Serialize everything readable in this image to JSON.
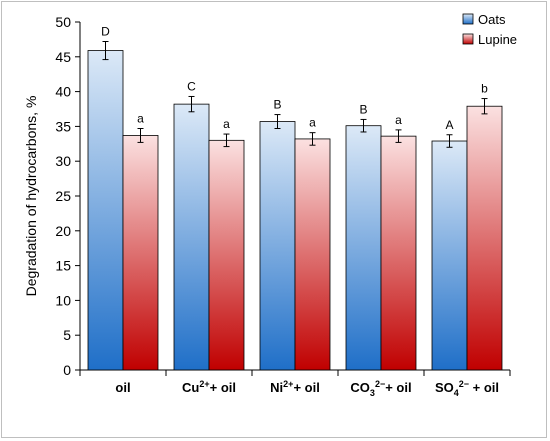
{
  "chart_data": {
    "type": "bar",
    "categories": [
      {
        "parts": [
          {
            "t": "oil",
            "s": ""
          }
        ]
      },
      {
        "parts": [
          {
            "t": "Cu",
            "s": ""
          },
          {
            "t": "2+",
            "s": "sup"
          },
          {
            "t": "+ oil",
            "s": ""
          }
        ]
      },
      {
        "parts": [
          {
            "t": "Ni",
            "s": ""
          },
          {
            "t": "2+",
            "s": "sup"
          },
          {
            "t": "+ oil",
            "s": ""
          }
        ]
      },
      {
        "parts": [
          {
            "t": "CO",
            "s": ""
          },
          {
            "t": "3",
            "s": "sub"
          },
          {
            "t": "2−",
            "s": "sup"
          },
          {
            "t": "+ oil",
            "s": ""
          }
        ]
      },
      {
        "parts": [
          {
            "t": "SO",
            "s": ""
          },
          {
            "t": "4",
            "s": "sub"
          },
          {
            "t": "2−",
            "s": "sup"
          },
          {
            "t": " + oil",
            "s": ""
          }
        ]
      }
    ],
    "series": [
      {
        "name": "Oats",
        "values": [
          45.9,
          38.2,
          35.7,
          35.1,
          32.9
        ],
        "errors": [
          1.3,
          1.1,
          1.0,
          0.9,
          0.9
        ],
        "labels": [
          "D",
          "C",
          "B",
          "B",
          "A"
        ],
        "color_top": "#dce9f7",
        "color_bottom": "#1f6fc8"
      },
      {
        "name": "Lupine",
        "values": [
          33.7,
          33.0,
          33.2,
          33.6,
          37.9
        ],
        "errors": [
          1.0,
          0.9,
          0.9,
          0.9,
          1.1
        ],
        "labels": [
          "a",
          "a",
          "a",
          "a",
          "b"
        ],
        "color_top": "#fbe1e1",
        "color_bottom": "#c00000"
      }
    ],
    "xlabel": "",
    "ylabel": "Degradation of hydrocarbons, %",
    "ylim": [
      0,
      50
    ],
    "yticks": [
      0,
      5,
      10,
      15,
      20,
      25,
      30,
      35,
      40,
      45,
      50
    ],
    "grid": false,
    "legend": "top-right"
  }
}
